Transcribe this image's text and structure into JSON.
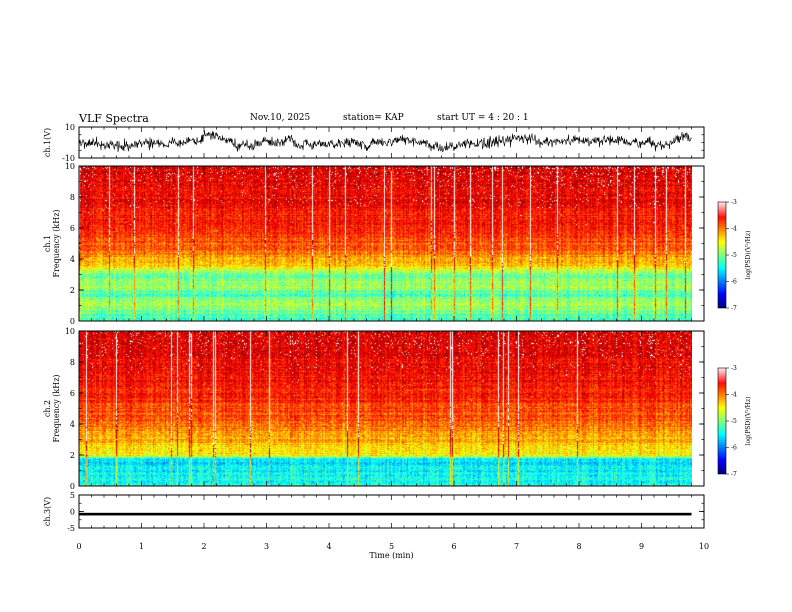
{
  "header": {
    "title": "VLF Spectra",
    "date": "Nov.10, 2025",
    "station": "station= KAP",
    "start": "start  UT  =   4 : 20 : 1"
  },
  "chart_data": [
    {
      "type": "line",
      "name": "ch1-waveform",
      "ylabel": "ch.1(V)",
      "ylim": [
        -10,
        10
      ],
      "yticks": [
        "10",
        "-10"
      ],
      "xlim": [
        0,
        10
      ],
      "data_until_min": 9.8
    },
    {
      "type": "heatmap",
      "name": "ch1-spectrogram",
      "ylabel": "Frequency (kHz)",
      "channel_label": "ch.1",
      "ylim": [
        0,
        10
      ],
      "yticks": [
        "0",
        "2",
        "4",
        "6",
        "8",
        "10"
      ],
      "xlim": [
        0,
        10
      ],
      "data_until_min": 9.8,
      "colorbar": {
        "label": "log(PSD)(V²/Hz)",
        "range": [
          -7,
          -3
        ],
        "ticks": [
          "-3",
          "-4",
          "-5",
          "-6",
          "-7"
        ]
      },
      "band_intensity_kHz": [
        [
          0.3,
          -5.2
        ],
        [
          1.2,
          -4.8
        ],
        [
          1.7,
          -5.2
        ],
        [
          2.3,
          -4.8
        ],
        [
          3.0,
          -5.2
        ],
        [
          3.5,
          -4.4
        ],
        [
          4.5,
          -3.9
        ],
        [
          6.0,
          -3.6
        ],
        [
          10.0,
          -3.3
        ]
      ]
    },
    {
      "type": "heatmap",
      "name": "ch2-spectrogram",
      "ylabel": "Frequency (kHz)",
      "channel_label": "ch.2",
      "ylim": [
        0,
        10
      ],
      "yticks": [
        "0",
        "2",
        "4",
        "6",
        "8",
        "10"
      ],
      "xlim": [
        0,
        10
      ],
      "data_until_min": 9.8,
      "colorbar": {
        "label": "log(PSD)(V²/Hz)",
        "range": [
          -7,
          -3
        ],
        "ticks": [
          "-3",
          "-4",
          "-5",
          "-6",
          "-7"
        ]
      },
      "band_intensity_kHz": [
        [
          0.4,
          -5.4
        ],
        [
          1.0,
          -5.5
        ],
        [
          1.8,
          -5.6
        ],
        [
          2.0,
          -4.5
        ],
        [
          3.0,
          -4.2
        ],
        [
          4.5,
          -3.8
        ],
        [
          7.0,
          -3.5
        ],
        [
          10.0,
          -3.3
        ]
      ]
    },
    {
      "type": "line",
      "name": "ch3-waveform",
      "ylabel": "ch.3(V)",
      "ylim": [
        -5,
        5
      ],
      "yticks": [
        "5",
        "0",
        "-5"
      ],
      "xlim": [
        0,
        10
      ],
      "data_until_min": 9.8,
      "level_band": [
        -1.2,
        -0.4
      ]
    },
    {
      "type": "axis",
      "name": "time-axis",
      "xlabel": "Time (min)",
      "xticks": [
        "0",
        "1",
        "2",
        "3",
        "4",
        "5",
        "6",
        "7",
        "8",
        "9",
        "10"
      ]
    }
  ]
}
